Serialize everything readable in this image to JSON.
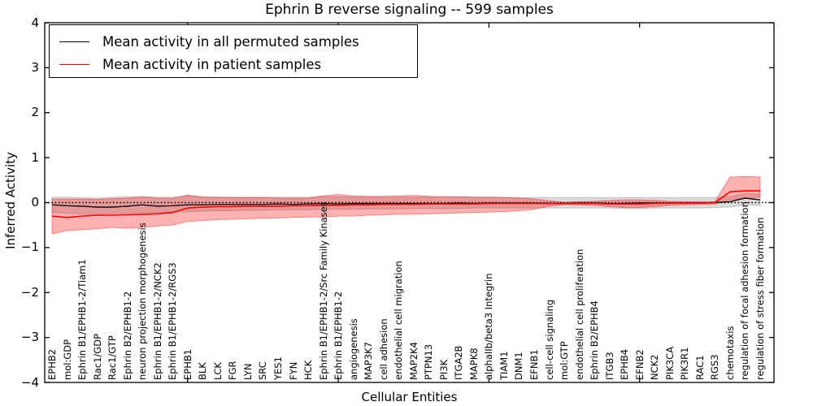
{
  "figure": {
    "title": "Ephrin B reverse signaling -- 599 samples",
    "xlabel": "Cellular Entities",
    "ylabel": "Inferred Activity",
    "legend": {
      "items": [
        {
          "label": "Mean activity in all permuted samples",
          "color": "#000000"
        },
        {
          "label": "Mean activity in patient samples",
          "color": "#ff0000"
        }
      ]
    }
  },
  "chart_data": {
    "type": "line",
    "title": "Ephrin B reverse signaling -- 599 samples",
    "xlabel": "Cellular Entities",
    "ylabel": "Inferred Activity",
    "ylim": [
      -4,
      4
    ],
    "grid": false,
    "legend_position": "upper left",
    "zero_line": {
      "y": 0,
      "style": "dotted",
      "color": "#000000"
    },
    "y_ticks": [
      {
        "v": 4,
        "label": "4"
      },
      {
        "v": 3,
        "label": "3"
      },
      {
        "v": 2,
        "label": "2"
      },
      {
        "v": 1,
        "label": "1"
      },
      {
        "v": 0,
        "label": "0"
      },
      {
        "v": -1,
        "label": "−1"
      },
      {
        "v": -2,
        "label": "−2"
      },
      {
        "v": -3,
        "label": "−3"
      },
      {
        "v": -4,
        "label": "−4"
      }
    ],
    "x_major_ticks_1based": [
      10,
      20,
      30,
      40
    ],
    "categories": [
      "EPHB2",
      "mol:GDP",
      "Ephrin B1/EPHB1-2/Tiam1",
      "Rac1/GDP",
      "Rac1/GTP",
      "Ephrin B2/EPHB1-2",
      "neuron projection morphogenesis",
      "Ephrin B1/EPHB1-2/NCK2",
      "Ephrin B1/EPHB1-2/RGS3",
      "EPHB1",
      "BLK",
      "LCK",
      "FGR",
      "LYN",
      "SRC",
      "YES1",
      "FYN",
      "HCK",
      "Ephrin B1/EPHB1-2/Src Family Kinases",
      "Ephrin B1/EPHB1-2",
      "angiogenesis",
      "MAP3K7",
      "cell adhesion",
      "endothelial cell migration",
      "MAP2K4",
      "PTPN13",
      "PI3K",
      "ITGA2B",
      "MAPK8",
      "alphaIIb/beta3 Integrin",
      "TIAM1",
      "DNM1",
      "EFNB1",
      "cell-cell signaling",
      "mol:GTP",
      "endothelial cell proliferation",
      "Ephrin B2/EPHB4",
      "ITGB3",
      "EPHB4",
      "EFNB2",
      "NCK2",
      "PIK3CA",
      "PIK3R1",
      "RAC1",
      "RGS3",
      "chemotaxis",
      "regulation of focal adhesion formation",
      "regulation of stress fiber formation"
    ],
    "series": [
      {
        "name": "Mean activity in all permuted samples",
        "color": "#000000",
        "band_fill": "rgba(128,128,128,0.28)",
        "band_edge": "rgba(110,110,110,0.35)",
        "values": [
          -0.05,
          -0.07,
          -0.08,
          -0.1,
          -0.1,
          -0.08,
          -0.05,
          -0.08,
          -0.07,
          -0.05,
          -0.05,
          -0.04,
          -0.04,
          -0.04,
          -0.04,
          -0.03,
          -0.04,
          -0.03,
          -0.02,
          -0.03,
          -0.02,
          -0.02,
          -0.02,
          -0.02,
          -0.02,
          -0.02,
          -0.02,
          -0.01,
          -0.02,
          -0.01,
          -0.01,
          -0.01,
          -0.01,
          -0.02,
          -0.02,
          -0.01,
          -0.01,
          -0.02,
          -0.02,
          -0.01,
          -0.01,
          -0.01,
          -0.01,
          -0.01,
          0.0,
          0.02,
          0.1,
          0.06
        ],
        "band_lower": [
          -0.22,
          -0.24,
          -0.25,
          -0.25,
          -0.24,
          -0.23,
          -0.22,
          -0.22,
          -0.21,
          -0.2,
          -0.19,
          -0.18,
          -0.18,
          -0.17,
          -0.17,
          -0.16,
          -0.16,
          -0.16,
          -0.15,
          -0.15,
          -0.15,
          -0.14,
          -0.14,
          -0.14,
          -0.13,
          -0.13,
          -0.13,
          -0.13,
          -0.12,
          -0.12,
          -0.12,
          -0.12,
          -0.12,
          -0.12,
          -0.12,
          -0.12,
          -0.12,
          -0.12,
          -0.13,
          -0.13,
          -0.12,
          -0.12,
          -0.12,
          -0.12,
          -0.11,
          -0.1,
          -0.05,
          -0.06
        ],
        "band_upper": [
          0.12,
          0.12,
          0.11,
          0.1,
          0.12,
          0.13,
          0.14,
          0.12,
          0.12,
          0.15,
          0.13,
          0.12,
          0.12,
          0.12,
          0.12,
          0.12,
          0.12,
          0.12,
          0.13,
          0.13,
          0.12,
          0.12,
          0.12,
          0.12,
          0.12,
          0.12,
          0.12,
          0.12,
          0.12,
          0.12,
          0.12,
          0.11,
          0.11,
          0.11,
          0.11,
          0.11,
          0.11,
          0.11,
          0.11,
          0.11,
          0.11,
          0.11,
          0.11,
          0.11,
          0.11,
          0.13,
          0.2,
          0.18
        ]
      },
      {
        "name": "Mean activity in patient samples",
        "color": "#ff0000",
        "band_fill": "rgba(255,0,0,0.30)",
        "band_edge": "rgba(255,0,0,0.40)",
        "values": [
          -0.3,
          -0.33,
          -0.3,
          -0.28,
          -0.28,
          -0.27,
          -0.26,
          -0.25,
          -0.22,
          -0.12,
          -0.1,
          -0.09,
          -0.09,
          -0.08,
          -0.08,
          -0.08,
          -0.07,
          -0.07,
          -0.06,
          -0.06,
          -0.05,
          -0.05,
          -0.04,
          -0.04,
          -0.04,
          -0.03,
          -0.03,
          -0.03,
          -0.03,
          -0.02,
          -0.02,
          -0.02,
          -0.02,
          -0.02,
          -0.02,
          -0.02,
          -0.02,
          -0.03,
          -0.03,
          -0.03,
          -0.02,
          -0.01,
          -0.01,
          -0.01,
          0.0,
          0.24,
          0.26,
          0.26
        ],
        "band_lower": [
          -0.7,
          -0.62,
          -0.6,
          -0.58,
          -0.55,
          -0.57,
          -0.55,
          -0.52,
          -0.5,
          -0.42,
          -0.4,
          -0.38,
          -0.37,
          -0.36,
          -0.35,
          -0.34,
          -0.33,
          -0.32,
          -0.32,
          -0.3,
          -0.3,
          -0.28,
          -0.27,
          -0.26,
          -0.26,
          -0.25,
          -0.24,
          -0.23,
          -0.22,
          -0.21,
          -0.2,
          -0.18,
          -0.15,
          -0.08,
          -0.04,
          -0.05,
          -0.06,
          -0.09,
          -0.11,
          -0.11,
          -0.09,
          -0.06,
          -0.05,
          -0.04,
          -0.03,
          0.06,
          0.09,
          0.12
        ],
        "band_upper": [
          0.08,
          0.08,
          0.08,
          0.07,
          0.09,
          0.1,
          0.12,
          0.1,
          0.09,
          0.17,
          0.12,
          0.12,
          0.11,
          0.11,
          0.11,
          0.1,
          0.1,
          0.1,
          0.15,
          0.18,
          0.15,
          0.14,
          0.14,
          0.15,
          0.16,
          0.14,
          0.13,
          0.13,
          0.12,
          0.12,
          0.11,
          0.1,
          0.08,
          0.04,
          0.01,
          0.02,
          0.03,
          0.05,
          0.06,
          0.06,
          0.05,
          0.03,
          0.02,
          0.02,
          0.02,
          0.57,
          0.58,
          0.57
        ]
      }
    ]
  }
}
